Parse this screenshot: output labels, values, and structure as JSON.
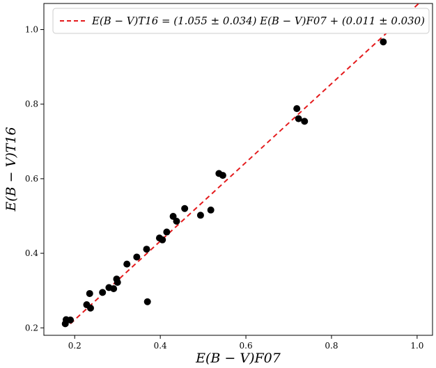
{
  "chart_data": {
    "type": "scatter",
    "xlabel": "E(B − V)F07",
    "ylabel": "E(B − V)T16",
    "xlim": [
      0.128,
      1.036
    ],
    "ylim": [
      0.18,
      1.07
    ],
    "x_ticks": [
      0.2,
      0.4,
      0.6,
      0.8,
      1.0
    ],
    "y_ticks": [
      0.2,
      0.4,
      0.6,
      0.8,
      1.0
    ],
    "x_tick_labels": [
      "0.2",
      "0.4",
      "0.6",
      "0.8",
      "1.0"
    ],
    "y_tick_labels": [
      "0.2",
      "0.4",
      "0.6",
      "0.8",
      "1.0"
    ],
    "grid": false,
    "legend_position": "top-right",
    "colors": {
      "points": "#000000",
      "fit_line": "#e41a1c"
    },
    "series": [
      {
        "values": [
          [
            0.178,
            0.211
          ],
          [
            0.18,
            0.222
          ],
          [
            0.19,
            0.221
          ],
          [
            0.228,
            0.262
          ],
          [
            0.235,
            0.292
          ],
          [
            0.237,
            0.253
          ],
          [
            0.265,
            0.295
          ],
          [
            0.28,
            0.308
          ],
          [
            0.291,
            0.305
          ],
          [
            0.298,
            0.331
          ],
          [
            0.3,
            0.322
          ],
          [
            0.322,
            0.371
          ],
          [
            0.345,
            0.39
          ],
          [
            0.368,
            0.411
          ],
          [
            0.37,
            0.27
          ],
          [
            0.398,
            0.441
          ],
          [
            0.405,
            0.436
          ],
          [
            0.415,
            0.457
          ],
          [
            0.43,
            0.499
          ],
          [
            0.438,
            0.486
          ],
          [
            0.457,
            0.52
          ],
          [
            0.494,
            0.502
          ],
          [
            0.518,
            0.516
          ],
          [
            0.537,
            0.614
          ],
          [
            0.546,
            0.609
          ],
          [
            0.719,
            0.788
          ],
          [
            0.723,
            0.761
          ],
          [
            0.737,
            0.754
          ],
          [
            0.921,
            0.967
          ]
        ]
      },
      {
        "name": "E(B − V)T16 = (1.055 ± 0.034) E(B − V)F07 + (0.011 ± 0.030)",
        "type": "line",
        "style": "dashed",
        "x": [
          0.19,
          1.036
        ],
        "y": [
          0.211,
          1.104
        ]
      }
    ]
  }
}
